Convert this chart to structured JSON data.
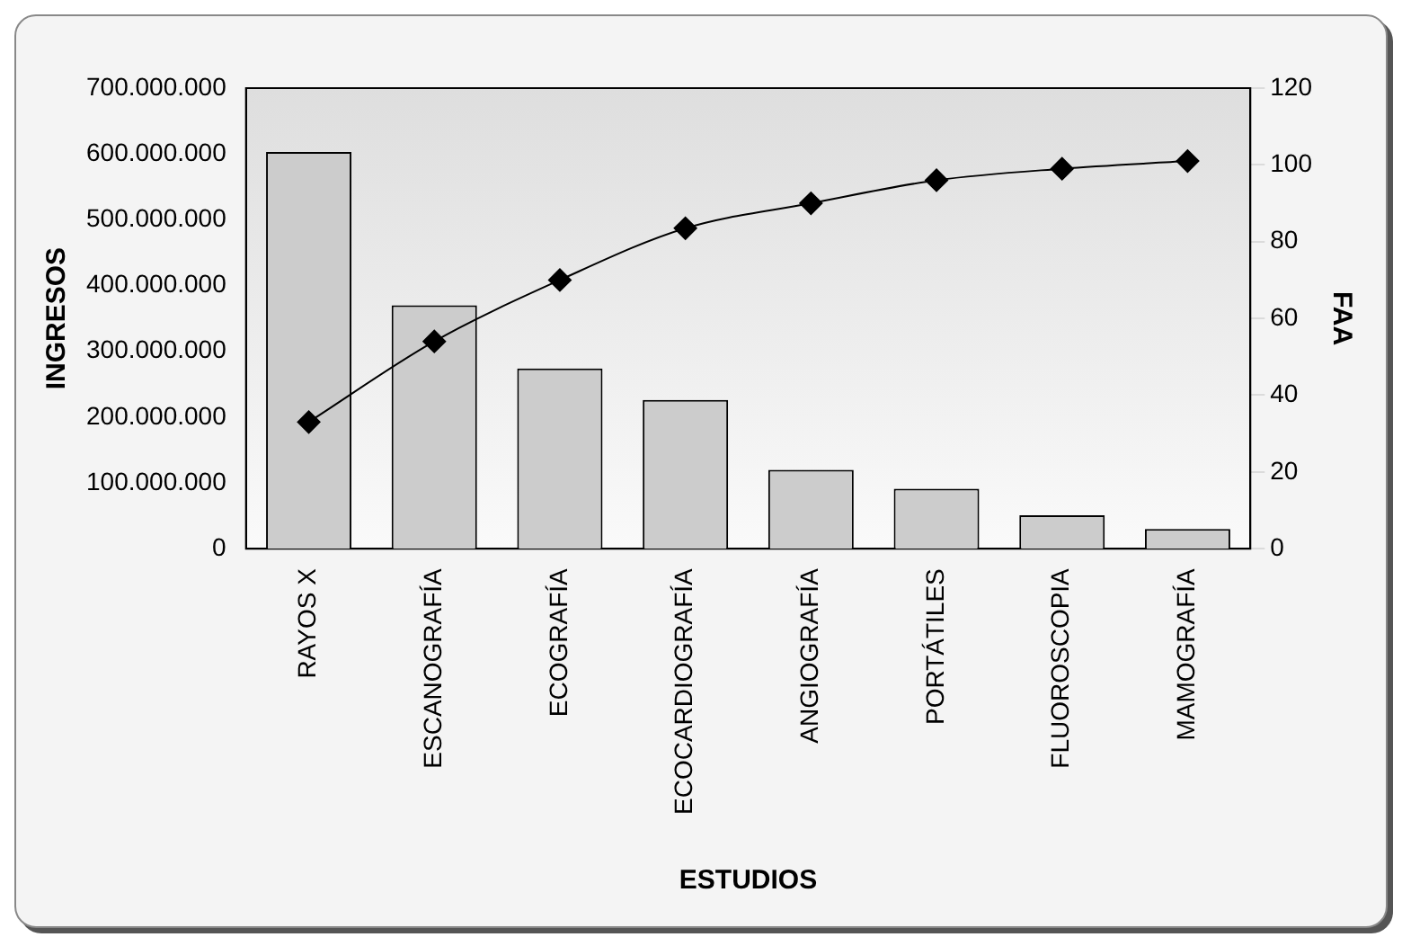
{
  "chart_data": {
    "type": "bar",
    "xlabel": "ESTUDIOS",
    "ylabel": "INGRESOS",
    "y2label": "FAA",
    "categories": [
      "RAYOS X",
      "ESCANOGRAFÍA",
      "ECOGRAFÍA",
      "ECOCARDIOGRAFÍA",
      "ANGIOGRAFÍA",
      "PORTÁTILES",
      "FLUOROSCOPIA",
      "MAMOGRAFÍA"
    ],
    "series": [
      {
        "color": "#cccccc",
        "values": [
          603000000,
          370000000,
          274000000,
          226000000,
          120000000,
          91000000,
          51000000,
          30000000
        ]
      },
      {
        "type": "line",
        "axis": "y2",
        "color": "#000000",
        "marker": "diamond",
        "values": [
          33,
          54,
          70,
          83.5,
          90,
          96,
          99,
          101
        ]
      }
    ],
    "ylim": [
      0,
      700000000
    ],
    "yticks": [
      {
        "value": 0,
        "label": "0"
      },
      {
        "value": 100000000,
        "label": "100.000.000"
      },
      {
        "value": 200000000,
        "label": "200.000.000"
      },
      {
        "value": 300000000,
        "label": "300.000.000"
      },
      {
        "value": 400000000,
        "label": "400.000.000"
      },
      {
        "value": 500000000,
        "label": "500.000.000"
      },
      {
        "value": 600000000,
        "label": "600.000.000"
      },
      {
        "value": 700000000,
        "label": "700.000.000"
      }
    ],
    "y2lim": [
      0,
      120
    ],
    "y2ticks": [
      0,
      20,
      40,
      60,
      80,
      100,
      120
    ],
    "grid": false,
    "legend": false
  }
}
